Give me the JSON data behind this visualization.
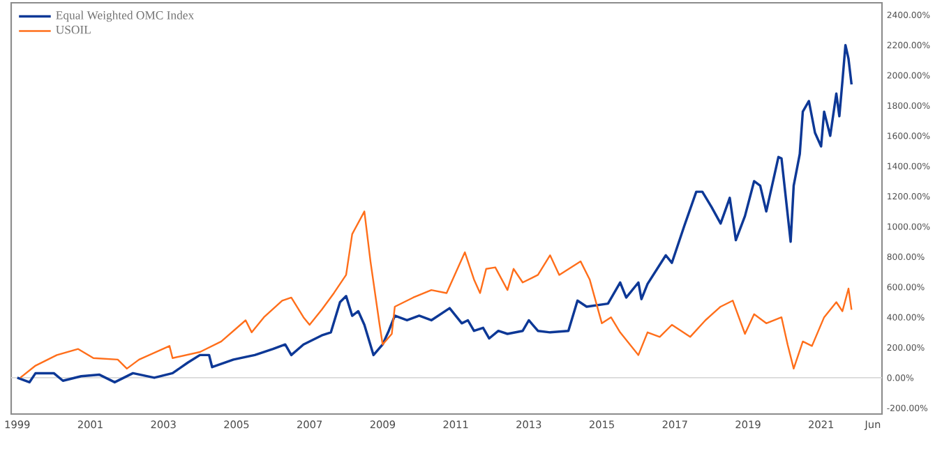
{
  "chart_data": {
    "type": "line",
    "series": [
      {
        "name": "Equal Weighted OMC Index",
        "color": "#0d3896",
        "x": [
          "1999-01",
          "1999-05",
          "1999-07",
          "2000-01",
          "2000-04",
          "2000-10",
          "2001-04",
          "2001-09",
          "2002-03",
          "2002-10",
          "2003-04",
          "2003-09",
          "2004-01",
          "2004-04",
          "2004-05",
          "2004-12",
          "2005-07",
          "2006-01",
          "2006-05",
          "2006-07",
          "2006-11",
          "2007-05",
          "2007-08",
          "2007-11",
          "2008-01",
          "2008-03",
          "2008-05",
          "2008-07",
          "2008-10",
          "2009-01",
          "2009-03",
          "2009-05",
          "2009-09",
          "2010-01",
          "2010-05",
          "2010-11",
          "2011-03",
          "2011-05",
          "2011-07",
          "2011-10",
          "2011-12",
          "2012-03",
          "2012-06",
          "2012-11",
          "2013-01",
          "2013-04",
          "2013-08",
          "2014-02",
          "2014-05",
          "2014-08",
          "2015-03",
          "2015-07",
          "2015-09",
          "2016-01",
          "2016-02",
          "2016-04",
          "2016-10",
          "2016-12",
          "2017-04",
          "2017-08",
          "2017-10",
          "2018-01",
          "2018-04",
          "2018-07",
          "2018-09",
          "2018-12",
          "2019-03",
          "2019-05",
          "2019-07",
          "2019-11",
          "2019-12",
          "2020-03",
          "2020-04",
          "2020-06",
          "2020-07",
          "2020-09",
          "2020-11",
          "2021-01",
          "2021-02",
          "2021-04",
          "2021-06",
          "2021-07",
          "2021-08",
          "2021-09",
          "2021-10",
          "2021-11"
        ],
        "values": [
          0,
          -30,
          30,
          30,
          -20,
          10,
          20,
          -30,
          30,
          0,
          30,
          100,
          150,
          150,
          70,
          120,
          150,
          190,
          220,
          150,
          220,
          280,
          300,
          500,
          540,
          410,
          440,
          350,
          150,
          220,
          310,
          410,
          380,
          410,
          380,
          460,
          360,
          380,
          310,
          330,
          260,
          310,
          290,
          310,
          380,
          310,
          300,
          310,
          510,
          470,
          490,
          630,
          530,
          630,
          520,
          620,
          810,
          760,
          1000,
          1230,
          1230,
          1130,
          1020,
          1190,
          910,
          1070,
          1300,
          1270,
          1100,
          1460,
          1450,
          900,
          1270,
          1480,
          1760,
          1830,
          1620,
          1530,
          1760,
          1600,
          1880,
          1730,
          1960,
          2200,
          2110,
          1940
        ]
      },
      {
        "name": "USOIL",
        "color": "#ff6e1a",
        "x": [
          "1999-02",
          "1999-07",
          "2000-02",
          "2000-09",
          "2001-02",
          "2001-10",
          "2002-01",
          "2002-05",
          "2003-03",
          "2003-04",
          "2004-01",
          "2004-08",
          "2005-04",
          "2005-06",
          "2005-10",
          "2006-04",
          "2006-07",
          "2006-11",
          "2007-01",
          "2007-05",
          "2007-09",
          "2008-01",
          "2008-03",
          "2008-07",
          "2008-09",
          "2008-12",
          "2009-01",
          "2009-04",
          "2009-05",
          "2009-11",
          "2010-05",
          "2010-10",
          "2011-04",
          "2011-07",
          "2011-09",
          "2011-11",
          "2012-02",
          "2012-06",
          "2012-08",
          "2012-11",
          "2013-04",
          "2013-08",
          "2013-11",
          "2014-06",
          "2014-09",
          "2015-01",
          "2015-04",
          "2015-07",
          "2016-01",
          "2016-04",
          "2016-08",
          "2016-12",
          "2017-06",
          "2017-11",
          "2018-04",
          "2018-08",
          "2018-12",
          "2019-03",
          "2019-07",
          "2019-12",
          "2020-02",
          "2020-04",
          "2020-07",
          "2020-10",
          "2021-02",
          "2021-06",
          "2021-08",
          "2021-10",
          "2021-11"
        ],
        "values": [
          0,
          80,
          150,
          190,
          130,
          120,
          60,
          120,
          210,
          130,
          170,
          240,
          380,
          300,
          400,
          510,
          530,
          400,
          350,
          450,
          560,
          680,
          950,
          1100,
          770,
          350,
          220,
          290,
          470,
          530,
          580,
          560,
          830,
          650,
          560,
          720,
          730,
          580,
          720,
          630,
          680,
          810,
          680,
          770,
          650,
          360,
          400,
          300,
          150,
          300,
          270,
          350,
          270,
          380,
          470,
          510,
          290,
          420,
          360,
          400,
          220,
          60,
          240,
          210,
          400,
          500,
          440,
          590,
          450
        ]
      }
    ],
    "xlim": [
      "1998-11",
      "2022-09"
    ],
    "xticks": [
      "1999",
      "2001",
      "2003",
      "2005",
      "2007",
      "2009",
      "2011",
      "2013",
      "2015",
      "2017",
      "2019",
      "2021",
      {
        "value": "2022-06",
        "label": "Jun"
      }
    ],
    "ylim": [
      -240,
      2480
    ],
    "yticks": [
      {
        "value": -200,
        "label": "-200.00%"
      },
      {
        "value": 0,
        "label": "0.00%"
      },
      {
        "value": 200,
        "label": "200.00%"
      },
      {
        "value": 400,
        "label": "400.00%"
      },
      {
        "value": 600,
        "label": "600.00%"
      },
      {
        "value": 800,
        "label": "800.00%"
      },
      {
        "value": 1000,
        "label": "1000.00%"
      },
      {
        "value": 1200,
        "label": "1200.00%"
      },
      {
        "value": 1400,
        "label": "1400.00%"
      },
      {
        "value": 1600,
        "label": "1600.00%"
      },
      {
        "value": 1800,
        "label": "1800.00%"
      },
      {
        "value": 2000,
        "label": "2000.00%"
      },
      {
        "value": 2200,
        "label": "2200.00%"
      },
      {
        "value": 2400,
        "label": "2400.00%"
      }
    ],
    "ref_lines": [
      {
        "axis": "y",
        "value": 0,
        "color": "#d9d9d9"
      }
    ],
    "legend": "top left",
    "grid": false,
    "marker": "none",
    "line_style": "solid"
  }
}
